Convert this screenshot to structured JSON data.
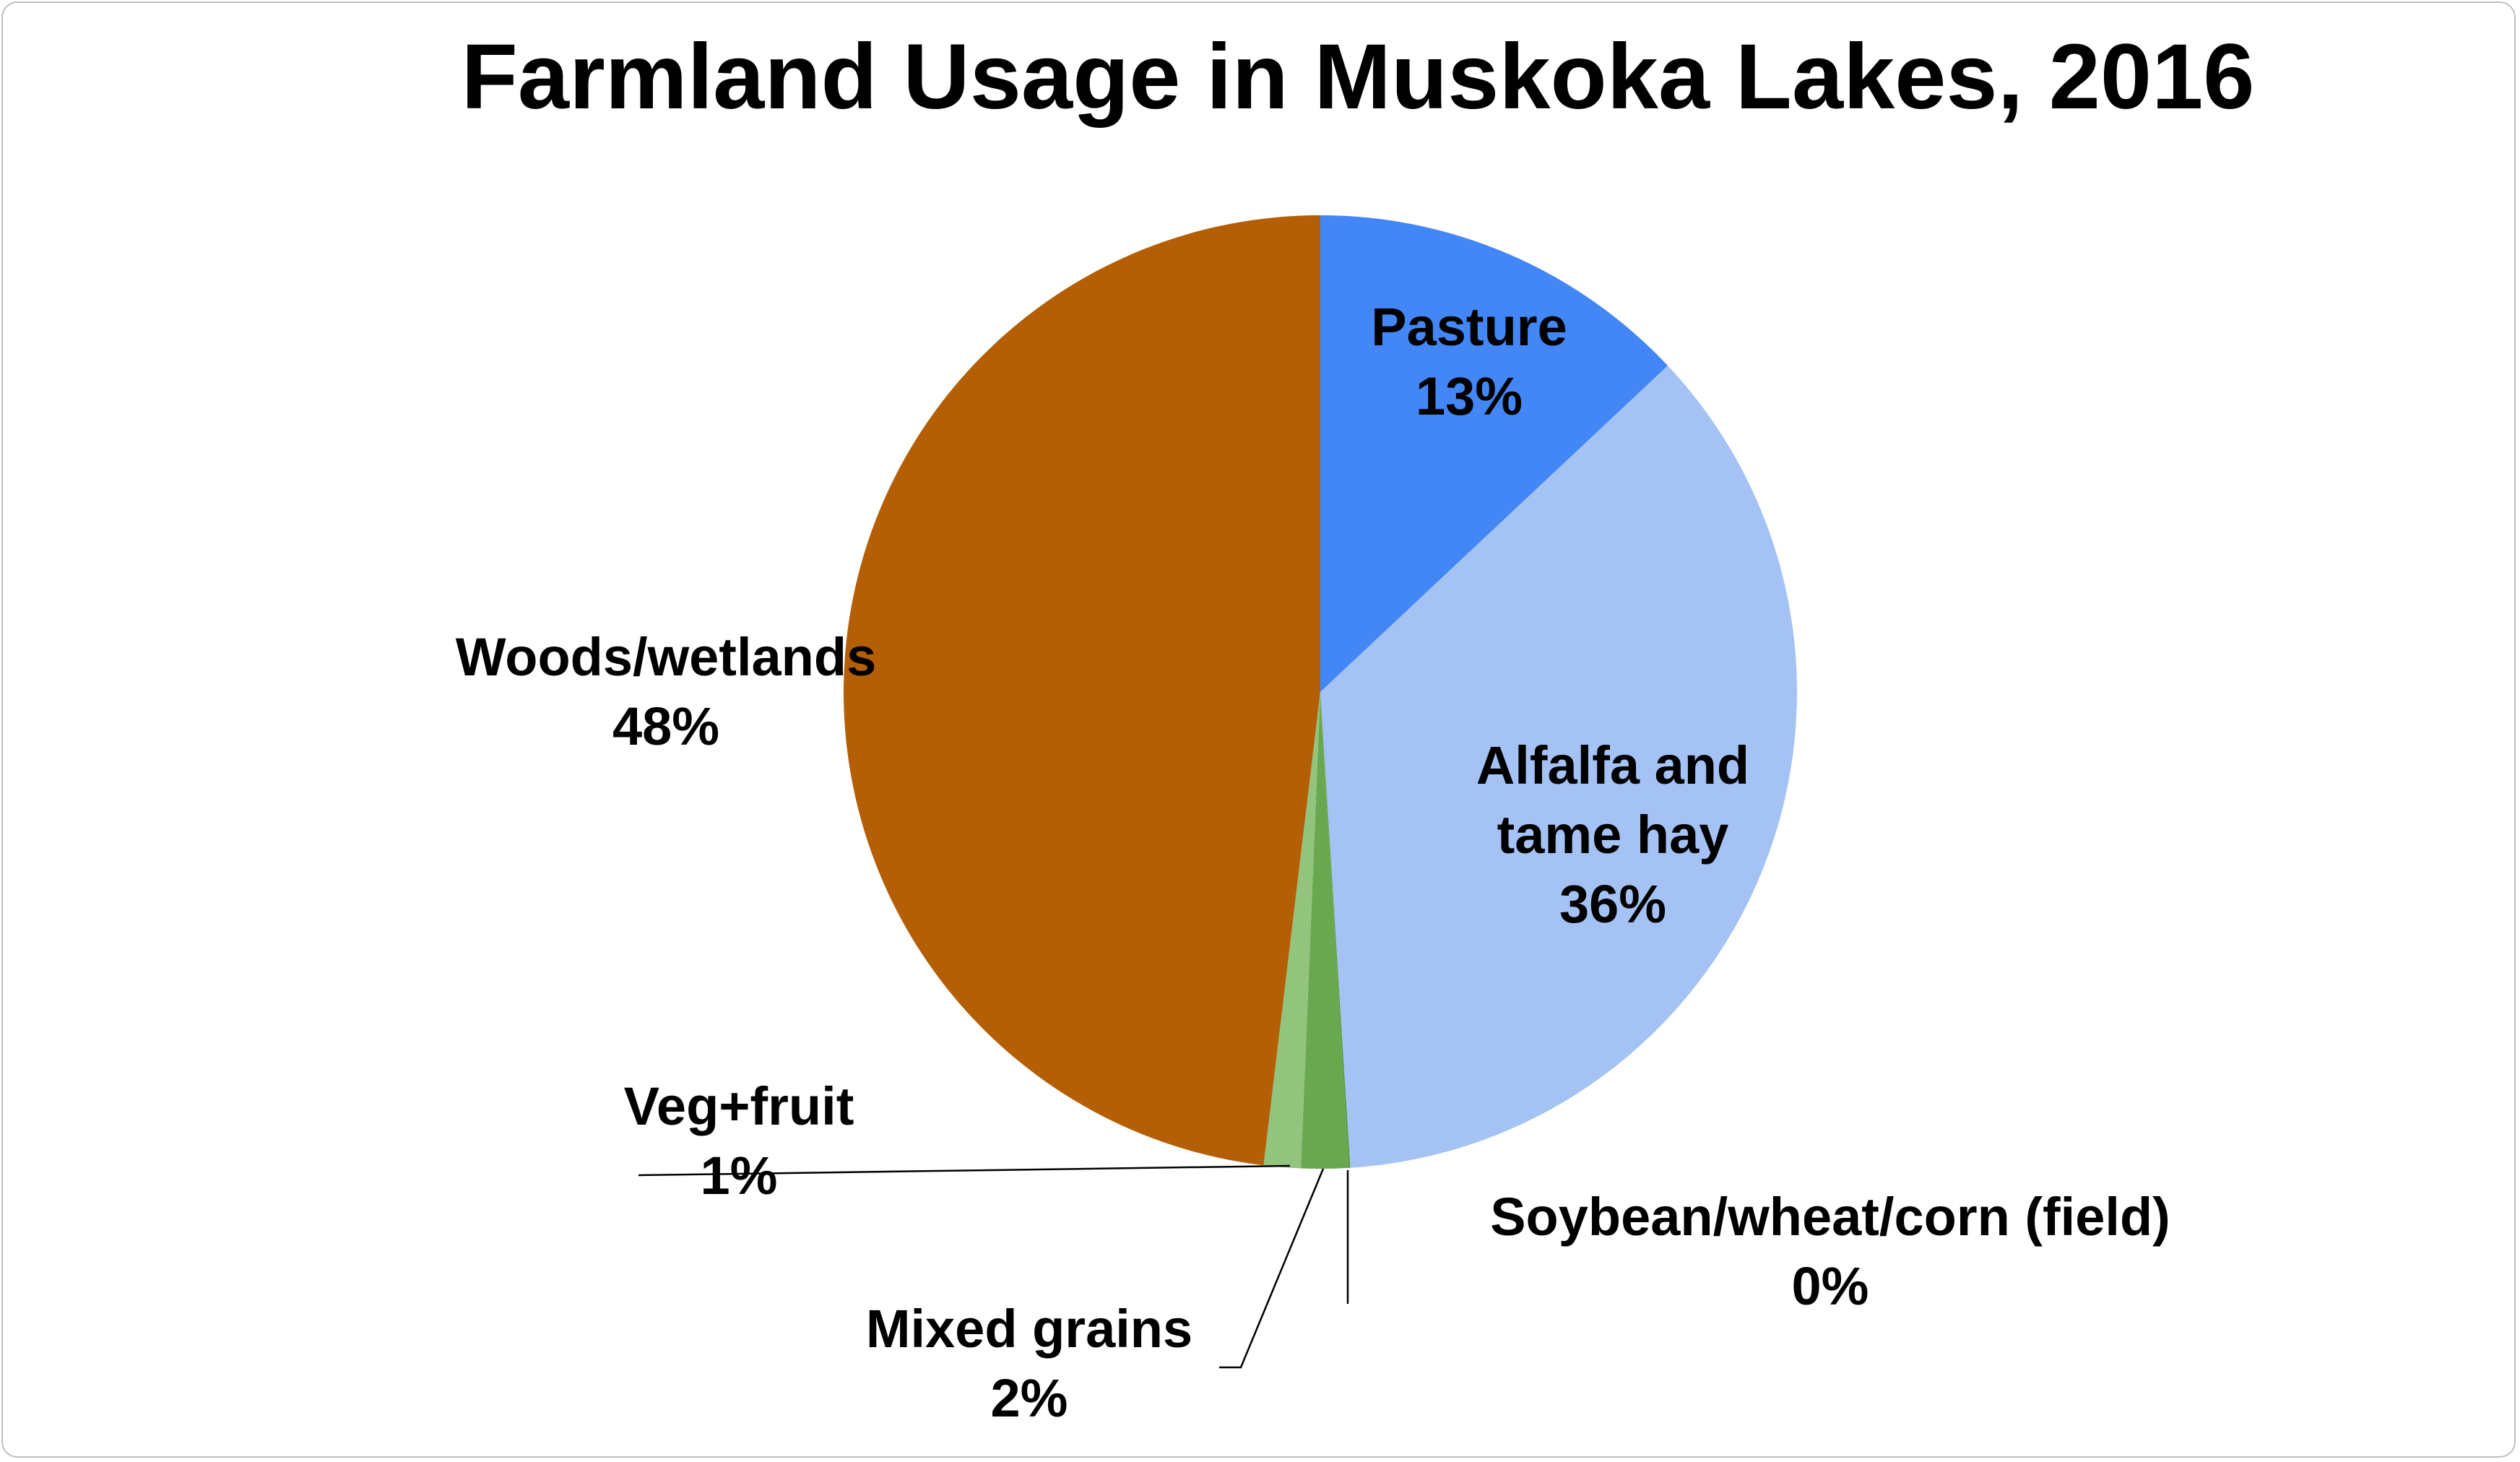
{
  "chart_data": {
    "type": "pie",
    "title": "Farmland Usage in Muskoka Lakes, 2016",
    "start_angle_deg": 0,
    "direction": "clockwise",
    "slices": [
      {
        "label": "Pasture",
        "value": 13,
        "value_label": "13%",
        "color": "#4287f5"
      },
      {
        "label": "Alfalfa and tame hay",
        "label_lines": [
          "Alfalfa and",
          "tame hay"
        ],
        "value": 36,
        "value_label": "36%",
        "color": "#a4c2f4"
      },
      {
        "label": "Soybean/wheat/corn (field)",
        "value": 0.05,
        "value_label": "0%",
        "color": "#4f9a38"
      },
      {
        "label": "Mixed grains",
        "value": 1.6,
        "value_label": "2%",
        "color": "#6aa84f"
      },
      {
        "label": "Veg+fruit",
        "value": 1.25,
        "value_label": "1%",
        "color": "#93c47d"
      },
      {
        "label": "Woods/wetlands",
        "value": 48.1,
        "value_label": "48%",
        "color": "#b45f06"
      }
    ],
    "legend": "none",
    "data_labels": "category name and percentage"
  }
}
